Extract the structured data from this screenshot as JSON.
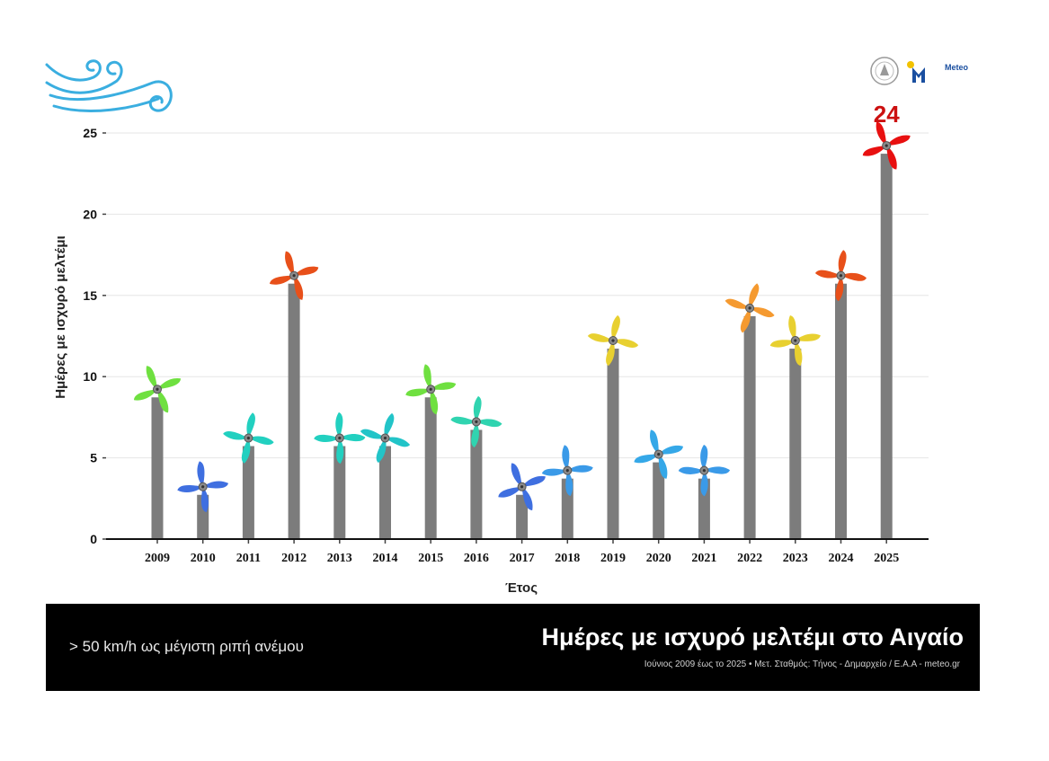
{
  "chart_data": {
    "type": "bar",
    "title": "Ημέρες με ισχυρό μελτέμι στο Αιγαίο",
    "subtitle": "> 50 km/h ως μέγιστη ριπή ανέμου",
    "source": "Ιούνιος 2009 έως το 2025 • Μετ. Σταθμός: Τήνος - Δημαρχείο / Ε.Α.Α - meteo.gr",
    "xlabel": "Έτος",
    "ylabel": "Ημέρες με ισχυρό μελτέμι",
    "categories": [
      "2009",
      "2010",
      "2011",
      "2012",
      "2013",
      "2014",
      "2015",
      "2016",
      "2017",
      "2018",
      "2019",
      "2020",
      "2021",
      "2022",
      "2023",
      "2024",
      "2025"
    ],
    "values": [
      9,
      3,
      6,
      16,
      6,
      6,
      9,
      7,
      3,
      4,
      12,
      5,
      4,
      14,
      12,
      16,
      24
    ],
    "colors": [
      "#6fe040",
      "#3f6fe0",
      "#22d0c0",
      "#e8501a",
      "#22d0c0",
      "#22c4c8",
      "#6fe040",
      "#30d4b0",
      "#3f6fe0",
      "#3a9ae8",
      "#e8d030",
      "#35a8e8",
      "#3a9ae8",
      "#f59a30",
      "#e8d030",
      "#e8501a",
      "#e81010"
    ],
    "ylim": [
      0,
      25
    ],
    "yticks": [
      "0",
      "5",
      "10",
      "15",
      "20",
      "25"
    ],
    "max_label": "24",
    "grid": true
  },
  "logos": {
    "brand_text": "Meteo"
  }
}
